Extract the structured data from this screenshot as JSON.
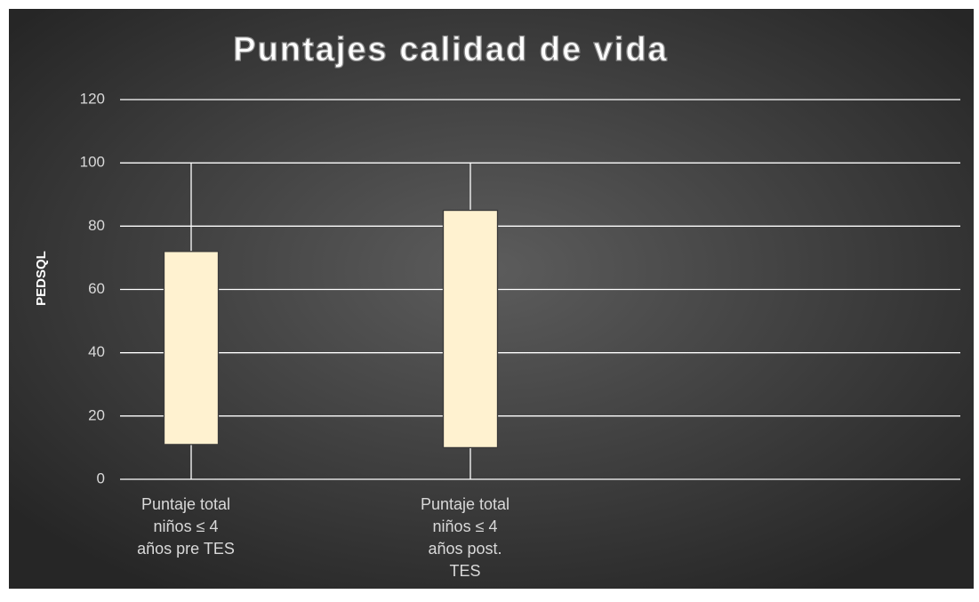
{
  "chart_data": {
    "type": "box",
    "title": "Puntajes calidad de vida",
    "y_label": "PEDSQL",
    "categories": [
      [
        "Puntaje  total",
        "niños ≤  4",
        "años pre TES"
      ],
      [
        "Puntaje total",
        "niños ≤  4",
        "años post.",
        "TES"
      ]
    ],
    "boxes": [
      {
        "low": 0,
        "q1": 11,
        "q3": 72,
        "high": 100
      },
      {
        "low": 0,
        "q1": 10,
        "q3": 85,
        "high": 100
      }
    ],
    "color": "#fff2d0",
    "ylim": [
      0,
      120
    ],
    "yticks": [
      0,
      20,
      40,
      60,
      80,
      100,
      120
    ],
    "grid": true
  }
}
